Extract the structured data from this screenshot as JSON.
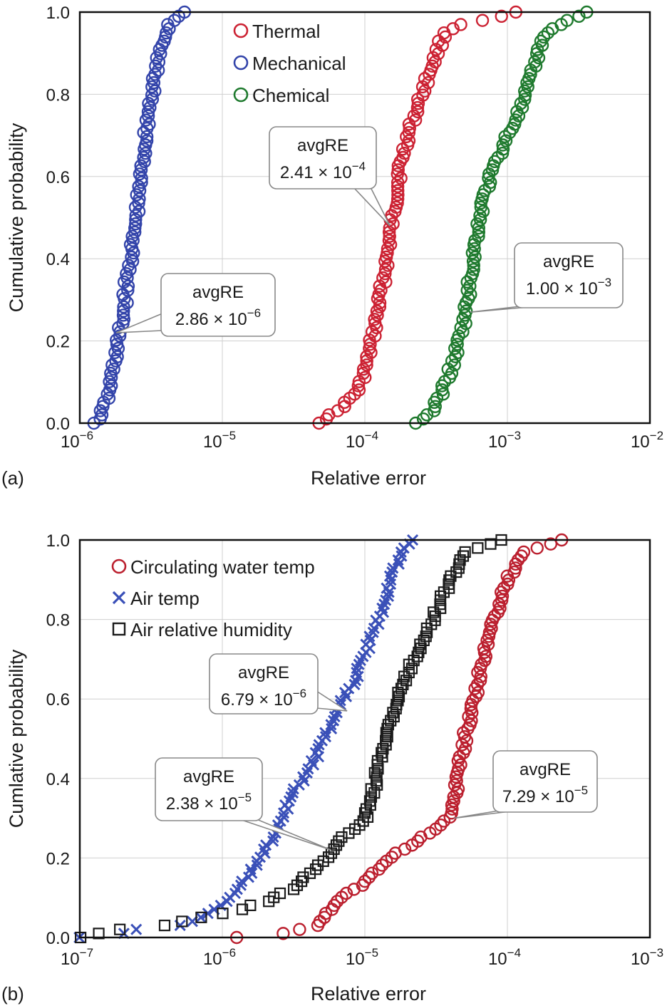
{
  "colors": {
    "thermal": "#cc2233",
    "mechanical": "#3344aa",
    "chemical": "#1f7a2e",
    "circulating": "#bb1f2e",
    "air_temp": "#3a50b8",
    "humidity": "#1a1a1a",
    "grid": "#cfcfcf"
  },
  "chart_data": [
    {
      "type": "scatter",
      "panel_label": "(a)",
      "xlabel": "Relative error",
      "ylabel": "Cumulative probability",
      "xscale": "log",
      "xlim": [
        1e-06,
        0.01
      ],
      "ylim": [
        0.0,
        1.0
      ],
      "grid": true,
      "legend_position": "top-center",
      "x_ticks": [
        {
          "base": "10",
          "exp": "−6"
        },
        {
          "base": "10",
          "exp": "−5"
        },
        {
          "base": "10",
          "exp": "−4"
        },
        {
          "base": "10",
          "exp": "−3"
        },
        {
          "base": "10",
          "exp": "−2"
        }
      ],
      "y_ticks": [
        "0.0",
        "0.2",
        "0.4",
        "0.6",
        "0.8",
        "1.0"
      ],
      "series": [
        {
          "name": "Thermal",
          "marker": "circle",
          "color": "#cc2233",
          "quantiles": [
            [
              0,
              4.6e-05
            ],
            [
              0.03,
              6.5e-05
            ],
            [
              0.08,
              9e-05
            ],
            [
              0.15,
              0.000105
            ],
            [
              0.25,
              0.00012
            ],
            [
              0.35,
              0.000135
            ],
            [
              0.45,
              0.00015
            ],
            [
              0.55,
              0.000165
            ],
            [
              0.62,
              0.000175
            ],
            [
              0.7,
              0.0002
            ],
            [
              0.78,
              0.00024
            ],
            [
              0.85,
              0.00028
            ],
            [
              0.9,
              0.00032
            ],
            [
              0.95,
              0.00036
            ],
            [
              0.97,
              0.00046
            ],
            [
              0.98,
              0.0007
            ],
            [
              1.0,
              0.0012
            ]
          ],
          "n": 100
        },
        {
          "name": "Mechanical",
          "marker": "circle",
          "color": "#3344aa",
          "quantiles": [
            [
              0,
              1.3e-06
            ],
            [
              0.03,
              1.45e-06
            ],
            [
              0.07,
              1.6e-06
            ],
            [
              0.15,
              1.75e-06
            ],
            [
              0.25,
              2e-06
            ],
            [
              0.35,
              2.15e-06
            ],
            [
              0.45,
              2.4e-06
            ],
            [
              0.55,
              2.6e-06
            ],
            [
              0.65,
              2.8e-06
            ],
            [
              0.75,
              3e-06
            ],
            [
              0.85,
              3.4e-06
            ],
            [
              0.92,
              3.8e-06
            ],
            [
              0.97,
              4.2e-06
            ],
            [
              1.0,
              5.3e-06
            ]
          ],
          "n": 100
        },
        {
          "name": "Chemical",
          "marker": "circle",
          "color": "#1f7a2e",
          "quantiles": [
            [
              0,
              0.00023
            ],
            [
              0.03,
              0.0003
            ],
            [
              0.08,
              0.00035
            ],
            [
              0.15,
              0.00042
            ],
            [
              0.25,
              0.0005
            ],
            [
              0.35,
              0.00055
            ],
            [
              0.45,
              0.0006
            ],
            [
              0.55,
              0.00068
            ],
            [
              0.62,
              0.0008
            ],
            [
              0.7,
              0.001
            ],
            [
              0.78,
              0.0013
            ],
            [
              0.85,
              0.0015
            ],
            [
              0.92,
              0.0017
            ],
            [
              0.96,
              0.002
            ],
            [
              1.0,
              0.0036
            ]
          ],
          "n": 100
        }
      ],
      "annotations": [
        {
          "title": "avgRE",
          "mantissa": "2.41 ×",
          "base": "10",
          "exp": "−4",
          "x": 0.00015,
          "y": 0.48
        },
        {
          "title": "avgRE",
          "mantissa": "2.86 ×",
          "base": "10",
          "exp": "−6",
          "x": 1.8e-06,
          "y": 0.22
        },
        {
          "title": "avgRE",
          "mantissa": "1.00 ×",
          "base": "10",
          "exp": "−3",
          "x": 0.00055,
          "y": 0.27
        }
      ]
    },
    {
      "type": "scatter",
      "panel_label": "(b)",
      "xlabel": "Relative error",
      "ylabel": "Cumlative probability",
      "xscale": "log",
      "xlim": [
        1e-07,
        0.001
      ],
      "ylim": [
        0.0,
        1.0
      ],
      "grid": true,
      "legend_position": "top-left",
      "x_ticks": [
        {
          "base": "10",
          "exp": "−7"
        },
        {
          "base": "10",
          "exp": "−6"
        },
        {
          "base": "10",
          "exp": "−5"
        },
        {
          "base": "10",
          "exp": "−4"
        },
        {
          "base": "10",
          "exp": "−3"
        }
      ],
      "y_ticks": [
        "0.0",
        "0.2",
        "0.4",
        "0.6",
        "0.8",
        "1.0"
      ],
      "series": [
        {
          "name": "Circulating water temp",
          "marker": "circle",
          "color": "#bb1f2e",
          "quantiles": [
            [
              0,
              1.3e-06
            ],
            [
              0.01,
              2.6e-06
            ],
            [
              0.03,
              4.5e-06
            ],
            [
              0.06,
              5.5e-06
            ],
            [
              0.1,
              7e-06
            ],
            [
              0.14,
              1e-05
            ],
            [
              0.18,
              1.3e-05
            ],
            [
              0.22,
              1.8e-05
            ],
            [
              0.25,
              2.5e-05
            ],
            [
              0.3,
              4e-05
            ],
            [
              0.4,
              4.5e-05
            ],
            [
              0.5,
              5e-05
            ],
            [
              0.6,
              5.8e-05
            ],
            [
              0.7,
              6.8e-05
            ],
            [
              0.8,
              8e-05
            ],
            [
              0.9,
              0.0001
            ],
            [
              0.97,
              0.00013
            ],
            [
              1.0,
              0.00025
            ]
          ],
          "n": 100
        },
        {
          "name": "Air temp",
          "marker": "x",
          "color": "#3a50b8",
          "quantiles": [
            [
              0,
              1e-07
            ],
            [
              0.01,
              2e-07
            ],
            [
              0.02,
              2.5e-07
            ],
            [
              0.03,
              5e-07
            ],
            [
              0.05,
              7e-07
            ],
            [
              0.08,
              1e-06
            ],
            [
              0.12,
              1.3e-06
            ],
            [
              0.17,
              1.6e-06
            ],
            [
              0.22,
              2e-06
            ],
            [
              0.28,
              2.5e-06
            ],
            [
              0.35,
              3e-06
            ],
            [
              0.45,
              4.5e-06
            ],
            [
              0.55,
              6e-06
            ],
            [
              0.65,
              8.5e-06
            ],
            [
              0.75,
              1.1e-05
            ],
            [
              0.85,
              1.4e-05
            ],
            [
              0.93,
              1.6e-05
            ],
            [
              1.0,
              2.1e-05
            ]
          ],
          "n": 100
        },
        {
          "name": "Air relative humidity",
          "marker": "square",
          "color": "#1a1a1a",
          "quantiles": [
            [
              0,
              1e-07
            ],
            [
              0.02,
              1.8e-07
            ],
            [
              0.03,
              4e-07
            ],
            [
              0.05,
              7e-07
            ],
            [
              0.07,
              1.3e-06
            ],
            [
              0.09,
              2e-06
            ],
            [
              0.12,
              3e-06
            ],
            [
              0.16,
              4e-06
            ],
            [
              0.2,
              5.5e-06
            ],
            [
              0.25,
              7e-06
            ],
            [
              0.3,
              1e-05
            ],
            [
              0.4,
              1.2e-05
            ],
            [
              0.5,
              1.4e-05
            ],
            [
              0.6,
              1.7e-05
            ],
            [
              0.7,
              2.2e-05
            ],
            [
              0.8,
              3e-05
            ],
            [
              0.9,
              4e-05
            ],
            [
              0.97,
              5e-05
            ],
            [
              1.0,
              9e-05
            ],
            [
              1.0,
              0.00024
            ]
          ],
          "n": 100
        }
      ],
      "annotations": [
        {
          "title": "avgRE",
          "mantissa": "6.79 ×",
          "base": "10",
          "exp": "−6",
          "x": 7.5e-06,
          "y": 0.57
        },
        {
          "title": "avgRE",
          "mantissa": "2.38 ×",
          "base": "10",
          "exp": "−5",
          "x": 5.8e-06,
          "y": 0.22
        },
        {
          "title": "avgRE",
          "mantissa": "7.29 ×",
          "base": "10",
          "exp": "−5",
          "x": 4.2e-05,
          "y": 0.3
        }
      ]
    }
  ]
}
